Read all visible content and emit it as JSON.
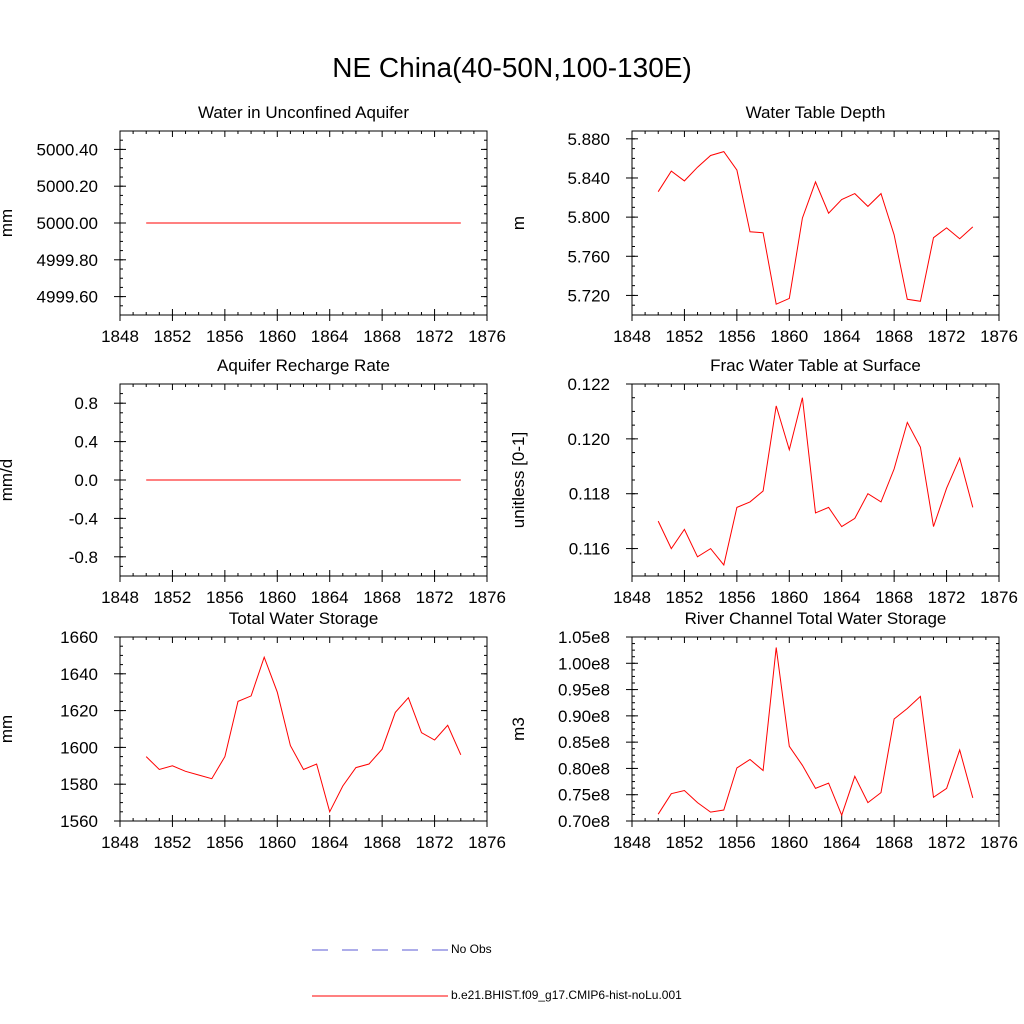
{
  "title": "NE China(40-50N,100-130E)",
  "chart_data": [
    {
      "type": "line",
      "title": "Water in Unconfined Aquifer",
      "ylabel": "mm",
      "xlim": [
        1848,
        1876
      ],
      "xticks": [
        "1848",
        "1852",
        "1856",
        "1860",
        "1864",
        "1868",
        "1872",
        "1876"
      ],
      "ylim": [
        4999.5,
        5000.5
      ],
      "yticks": [
        {
          "value": 5000.4,
          "label": "5000.40"
        },
        {
          "value": 5000.2,
          "label": "5000.20"
        },
        {
          "value": 5000.0,
          "label": "5000.00"
        },
        {
          "value": 4999.8,
          "label": "4999.80"
        },
        {
          "value": 4999.6,
          "label": "4999.60"
        }
      ],
      "x": [
        1850,
        1874
      ],
      "series": [
        {
          "color": "#ff0000",
          "values": [
            5000.0,
            5000.0
          ]
        }
      ]
    },
    {
      "type": "line",
      "title": "Water Table Depth",
      "ylabel": "m",
      "xlim": [
        1848,
        1876
      ],
      "xticks": [
        "1848",
        "1852",
        "1856",
        "1860",
        "1864",
        "1868",
        "1872",
        "1876"
      ],
      "ylim": [
        5.7,
        5.888
      ],
      "yticks": [
        {
          "value": 5.88,
          "label": "5.880"
        },
        {
          "value": 5.84,
          "label": "5.840"
        },
        {
          "value": 5.8,
          "label": "5.800"
        },
        {
          "value": 5.76,
          "label": "5.760"
        },
        {
          "value": 5.72,
          "label": "5.720"
        }
      ],
      "x": [
        1850,
        1851,
        1852,
        1853,
        1854,
        1855,
        1856,
        1857,
        1858,
        1859,
        1860,
        1861,
        1862,
        1863,
        1864,
        1865,
        1866,
        1867,
        1868,
        1869,
        1870,
        1871,
        1872,
        1873,
        1874
      ],
      "series": [
        {
          "color": "#ff0000",
          "values": [
            5.826,
            5.847,
            5.837,
            5.851,
            5.863,
            5.867,
            5.848,
            5.785,
            5.784,
            5.711,
            5.717,
            5.799,
            5.836,
            5.804,
            5.818,
            5.824,
            5.811,
            5.824,
            5.782,
            5.716,
            5.714,
            5.779,
            5.789,
            5.778,
            5.79
          ]
        }
      ]
    },
    {
      "type": "line",
      "title": "Aquifer Recharge Rate",
      "ylabel": "mm/d",
      "xlim": [
        1848,
        1876
      ],
      "xticks": [
        "1848",
        "1852",
        "1856",
        "1860",
        "1864",
        "1868",
        "1872",
        "1876"
      ],
      "ylim": [
        -1.0,
        1.0
      ],
      "yticks": [
        {
          "value": 0.8,
          "label": "0.8"
        },
        {
          "value": 0.4,
          "label": "0.4"
        },
        {
          "value": 0.0,
          "label": "0.0"
        },
        {
          "value": -0.4,
          "label": "-0.4"
        },
        {
          "value": -0.8,
          "label": "-0.8"
        }
      ],
      "x": [
        1850,
        1874
      ],
      "series": [
        {
          "color": "#ff0000",
          "values": [
            0.0,
            0.0
          ]
        }
      ]
    },
    {
      "type": "line",
      "title": "Frac Water Table at Surface",
      "ylabel": "unitless [0-1]",
      "xlim": [
        1848,
        1876
      ],
      "xticks": [
        "1848",
        "1852",
        "1856",
        "1860",
        "1864",
        "1868",
        "1872",
        "1876"
      ],
      "ylim": [
        0.115,
        0.122
      ],
      "yticks": [
        {
          "value": 0.122,
          "label": "0.122"
        },
        {
          "value": 0.12,
          "label": "0.120"
        },
        {
          "value": 0.118,
          "label": "0.118"
        },
        {
          "value": 0.116,
          "label": "0.116"
        }
      ],
      "x": [
        1850,
        1851,
        1852,
        1853,
        1854,
        1855,
        1856,
        1857,
        1858,
        1859,
        1860,
        1861,
        1862,
        1863,
        1864,
        1865,
        1866,
        1867,
        1868,
        1869,
        1870,
        1871,
        1872,
        1873,
        1874
      ],
      "series": [
        {
          "color": "#ff0000",
          "values": [
            0.117,
            0.116,
            0.1167,
            0.1157,
            0.116,
            0.1154,
            0.1175,
            0.1177,
            0.1181,
            0.1212,
            0.1196,
            0.1215,
            0.1173,
            0.1175,
            0.1168,
            0.1171,
            0.118,
            0.1177,
            0.1189,
            0.1206,
            0.1197,
            0.1168,
            0.1182,
            0.1193,
            0.1175
          ]
        }
      ]
    },
    {
      "type": "line",
      "title": "Total Water Storage",
      "ylabel": "mm",
      "xlim": [
        1848,
        1876
      ],
      "xticks": [
        "1848",
        "1852",
        "1856",
        "1860",
        "1864",
        "1868",
        "1872",
        "1876"
      ],
      "ylim": [
        1560,
        1660
      ],
      "yticks": [
        {
          "value": 1660,
          "label": "1660"
        },
        {
          "value": 1640,
          "label": "1640"
        },
        {
          "value": 1620,
          "label": "1620"
        },
        {
          "value": 1600,
          "label": "1600"
        },
        {
          "value": 1580,
          "label": "1580"
        },
        {
          "value": 1560,
          "label": "1560"
        }
      ],
      "x": [
        1850,
        1851,
        1852,
        1853,
        1854,
        1855,
        1856,
        1857,
        1858,
        1859,
        1860,
        1861,
        1862,
        1863,
        1864,
        1865,
        1866,
        1867,
        1868,
        1869,
        1870,
        1871,
        1872,
        1873,
        1874
      ],
      "series": [
        {
          "color": "#ff0000",
          "values": [
            1595,
            1588,
            1590,
            1587,
            1585,
            1583,
            1595,
            1625,
            1628,
            1649,
            1630,
            1601,
            1588,
            1591,
            1565,
            1579,
            1589,
            1591,
            1599,
            1619,
            1627,
            1608,
            1604,
            1612,
            1596
          ]
        }
      ]
    },
    {
      "type": "line",
      "title": "River Channel Total Water Storage",
      "ylabel": "m3",
      "xlim": [
        1848,
        1876
      ],
      "xticks": [
        "1848",
        "1852",
        "1856",
        "1860",
        "1864",
        "1868",
        "1872",
        "1876"
      ],
      "ylim": [
        0.7,
        1.05
      ],
      "yticks": [
        {
          "value": 1.05,
          "label": "1.05e8"
        },
        {
          "value": 1.0,
          "label": "1.00e8"
        },
        {
          "value": 0.95,
          "label": "0.95e8"
        },
        {
          "value": 0.9,
          "label": "0.90e8"
        },
        {
          "value": 0.85,
          "label": "0.85e8"
        },
        {
          "value": 0.8,
          "label": "0.80e8"
        },
        {
          "value": 0.75,
          "label": "0.75e8"
        },
        {
          "value": 0.7,
          "label": "0.70e8"
        }
      ],
      "x": [
        1850,
        1851,
        1852,
        1853,
        1854,
        1855,
        1856,
        1857,
        1858,
        1859,
        1860,
        1861,
        1862,
        1863,
        1864,
        1865,
        1866,
        1867,
        1868,
        1869,
        1870,
        1871,
        1872,
        1873,
        1874
      ],
      "series": [
        {
          "color": "#ff0000",
          "values": [
            0.713,
            0.752,
            0.758,
            0.735,
            0.717,
            0.721,
            0.801,
            0.817,
            0.796,
            1.03,
            0.842,
            0.806,
            0.762,
            0.772,
            0.711,
            0.785,
            0.735,
            0.754,
            0.894,
            0.914,
            0.937,
            0.745,
            0.762,
            0.835,
            0.744
          ]
        }
      ]
    }
  ],
  "legend": [
    {
      "label": "No Obs",
      "color": "#5b5bd6",
      "dash": "dashed"
    },
    {
      "label": "b.e21.BHIST.f09_g17.CMIP6-hist-noLu.001",
      "color": "#ff0000",
      "dash": "solid"
    }
  ]
}
